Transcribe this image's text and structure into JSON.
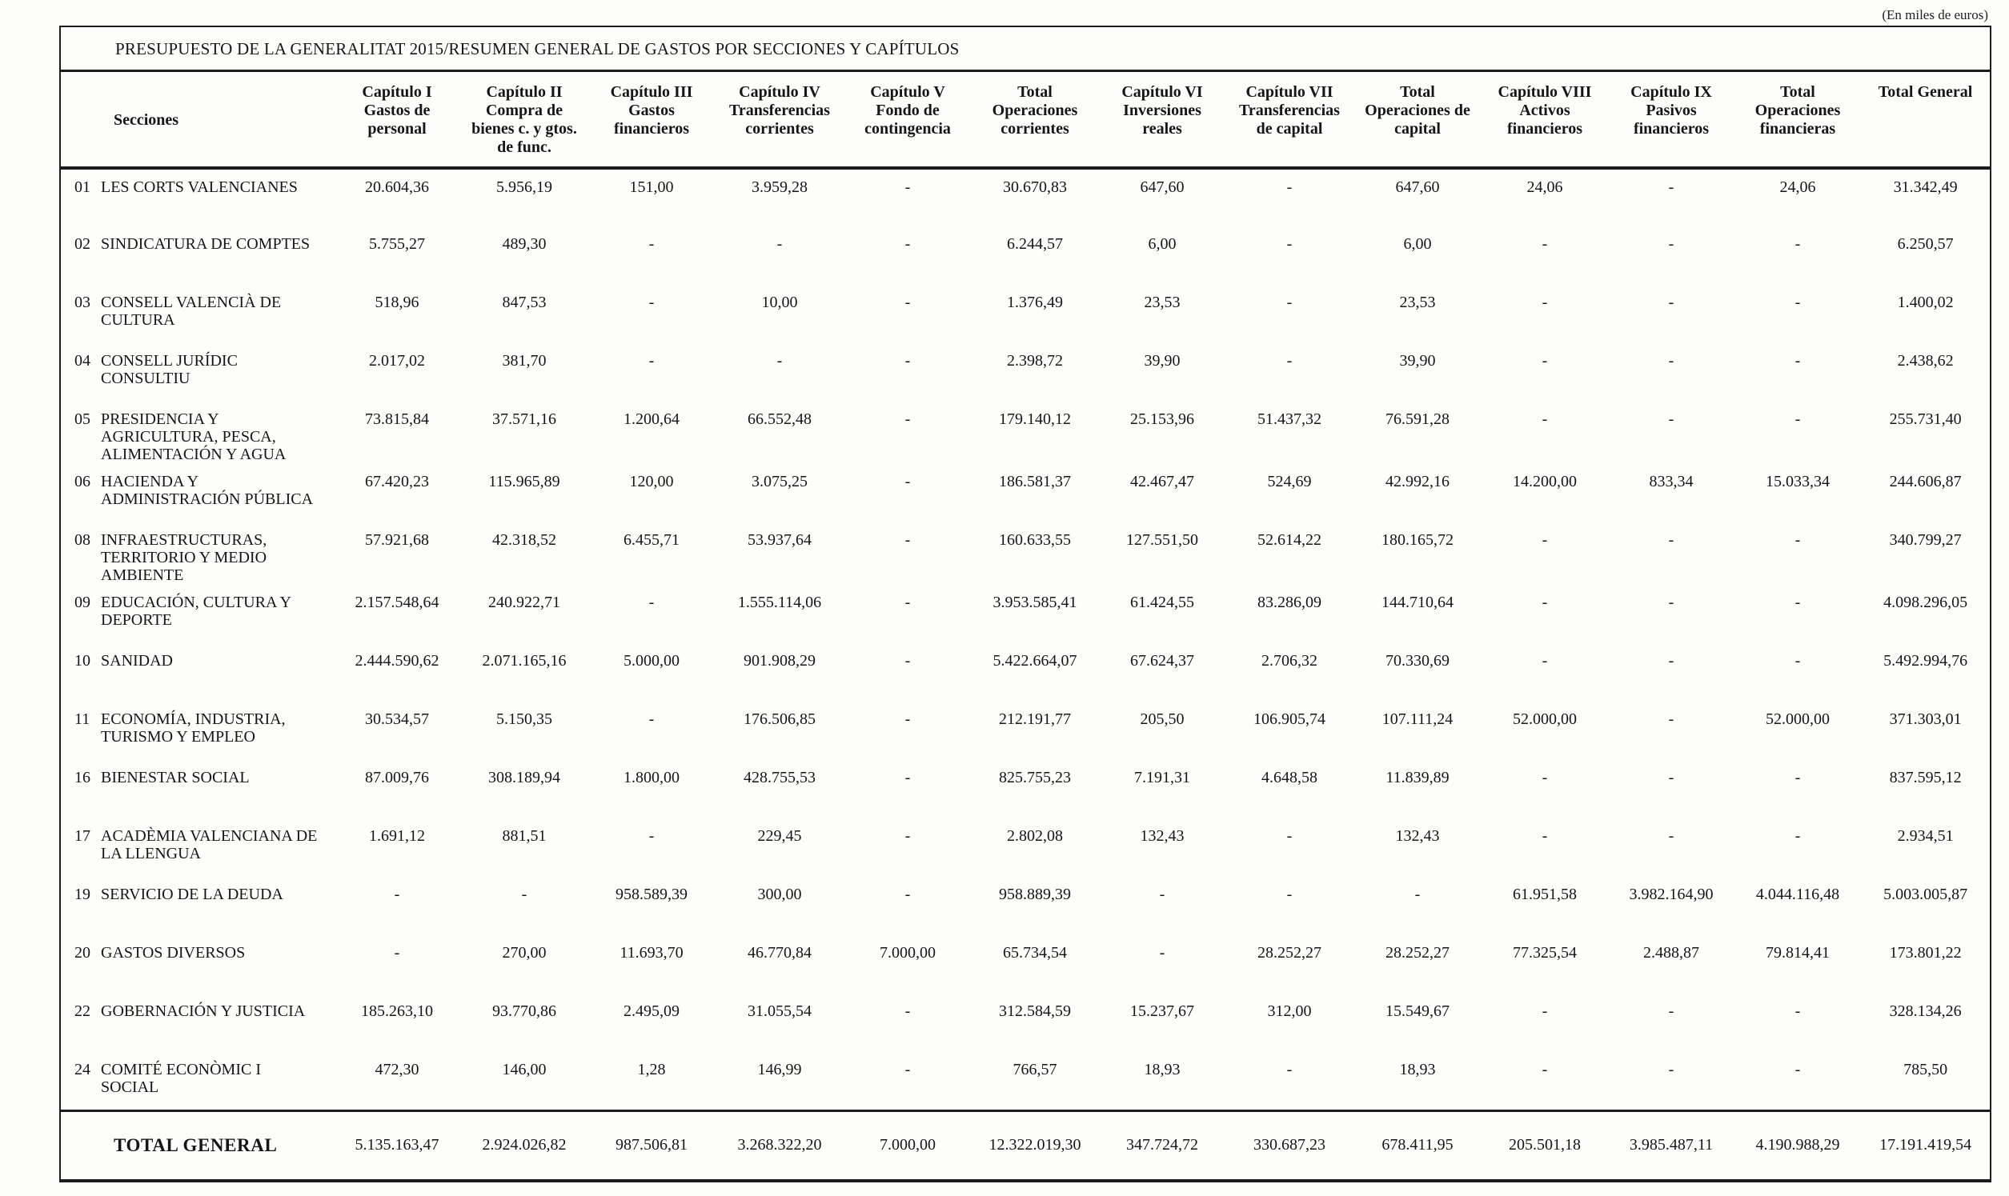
{
  "page": {
    "note": "(En miles de euros)"
  },
  "table": {
    "title": "PRESUPUESTO DE LA GENERALITAT 2015/RESUMEN GENERAL DE GASTOS POR SECCIONES Y CAPÍTULOS",
    "columns": [
      {
        "id": "secciones",
        "label": "Secciones"
      },
      {
        "id": "cap1",
        "label": "Capítulo I\nGastos de\npersonal"
      },
      {
        "id": "cap2",
        "label": "Capítulo II\nCompra de\nbienes c. y gtos.\nde func."
      },
      {
        "id": "cap3",
        "label": "Capítulo III\nGastos\nfinancieros"
      },
      {
        "id": "cap4",
        "label": "Capítulo IV\nTransferencias\ncorrientes"
      },
      {
        "id": "cap5",
        "label": "Capítulo V\nFondo de\ncontingencia"
      },
      {
        "id": "total_corrientes",
        "label": "Total\nOperaciones\ncorrientes"
      },
      {
        "id": "cap6",
        "label": "Capítulo VI\nInversiones\nreales"
      },
      {
        "id": "cap7",
        "label": "Capítulo VII\nTransferencias\nde capital"
      },
      {
        "id": "total_capital",
        "label": "Total\nOperaciones de\ncapital"
      },
      {
        "id": "cap8",
        "label": "Capítulo VIII\nActivos\nfinancieros"
      },
      {
        "id": "cap9",
        "label": "Capítulo IX\nPasivos\nfinancieros"
      },
      {
        "id": "total_financieras",
        "label": "Total\nOperaciones\nfinancieras"
      },
      {
        "id": "total_general",
        "label": "Total General"
      }
    ],
    "rows": [
      {
        "code": "01",
        "name": "LES CORTS VALENCIANES",
        "values": [
          "20.604,36",
          "5.956,19",
          "151,00",
          "3.959,28",
          "-",
          "30.670,83",
          "647,60",
          "-",
          "647,60",
          "24,06",
          "-",
          "24,06",
          "31.342,49"
        ]
      },
      {
        "code": "02",
        "name": "SINDICATURA DE COMPTES",
        "values": [
          "5.755,27",
          "489,30",
          "-",
          "-",
          "-",
          "6.244,57",
          "6,00",
          "-",
          "6,00",
          "-",
          "-",
          "-",
          "6.250,57"
        ]
      },
      {
        "code": "03",
        "name": "CONSELL VALENCIÀ DE\nCULTURA",
        "values": [
          "518,96",
          "847,53",
          "-",
          "10,00",
          "-",
          "1.376,49",
          "23,53",
          "-",
          "23,53",
          "-",
          "-",
          "-",
          "1.400,02"
        ]
      },
      {
        "code": "04",
        "name": "CONSELL JURÍDIC\nCONSULTIU",
        "values": [
          "2.017,02",
          "381,70",
          "-",
          "-",
          "-",
          "2.398,72",
          "39,90",
          "-",
          "39,90",
          "-",
          "-",
          "-",
          "2.438,62"
        ]
      },
      {
        "code": "05",
        "name": "PRESIDENCIA Y\nAGRICULTURA, PESCA,\nALIMENTACIÓN Y AGUA",
        "values": [
          "73.815,84",
          "37.571,16",
          "1.200,64",
          "66.552,48",
          "-",
          "179.140,12",
          "25.153,96",
          "51.437,32",
          "76.591,28",
          "-",
          "-",
          "-",
          "255.731,40"
        ]
      },
      {
        "code": "06",
        "name": "HACIENDA Y\nADMINISTRACIÓN PÚBLICA",
        "values": [
          "67.420,23",
          "115.965,89",
          "120,00",
          "3.075,25",
          "-",
          "186.581,37",
          "42.467,47",
          "524,69",
          "42.992,16",
          "14.200,00",
          "833,34",
          "15.033,34",
          "244.606,87"
        ]
      },
      {
        "code": "08",
        "name": "INFRAESTRUCTURAS,\nTERRITORIO Y MEDIO\nAMBIENTE",
        "values": [
          "57.921,68",
          "42.318,52",
          "6.455,71",
          "53.937,64",
          "-",
          "160.633,55",
          "127.551,50",
          "52.614,22",
          "180.165,72",
          "-",
          "-",
          "-",
          "340.799,27"
        ]
      },
      {
        "code": "09",
        "name": "EDUCACIÓN, CULTURA Y\nDEPORTE",
        "values": [
          "2.157.548,64",
          "240.922,71",
          "-",
          "1.555.114,06",
          "-",
          "3.953.585,41",
          "61.424,55",
          "83.286,09",
          "144.710,64",
          "-",
          "-",
          "-",
          "4.098.296,05"
        ]
      },
      {
        "code": "10",
        "name": "SANIDAD",
        "values": [
          "2.444.590,62",
          "2.071.165,16",
          "5.000,00",
          "901.908,29",
          "-",
          "5.422.664,07",
          "67.624,37",
          "2.706,32",
          "70.330,69",
          "-",
          "-",
          "-",
          "5.492.994,76"
        ]
      },
      {
        "code": "11",
        "name": "ECONOMÍA, INDUSTRIA,\nTURISMO Y EMPLEO",
        "values": [
          "30.534,57",
          "5.150,35",
          "-",
          "176.506,85",
          "-",
          "212.191,77",
          "205,50",
          "106.905,74",
          "107.111,24",
          "52.000,00",
          "-",
          "52.000,00",
          "371.303,01"
        ]
      },
      {
        "code": "16",
        "name": "BIENESTAR SOCIAL",
        "values": [
          "87.009,76",
          "308.189,94",
          "1.800,00",
          "428.755,53",
          "-",
          "825.755,23",
          "7.191,31",
          "4.648,58",
          "11.839,89",
          "-",
          "-",
          "-",
          "837.595,12"
        ]
      },
      {
        "code": "17",
        "name": "ACADÈMIA VALENCIANA DE\nLA LLENGUA",
        "values": [
          "1.691,12",
          "881,51",
          "-",
          "229,45",
          "-",
          "2.802,08",
          "132,43",
          "-",
          "132,43",
          "-",
          "-",
          "-",
          "2.934,51"
        ]
      },
      {
        "code": "19",
        "name": "SERVICIO DE LA DEUDA",
        "values": [
          "-",
          "-",
          "958.589,39",
          "300,00",
          "-",
          "958.889,39",
          "-",
          "-",
          "-",
          "61.951,58",
          "3.982.164,90",
          "4.044.116,48",
          "5.003.005,87"
        ]
      },
      {
        "code": "20",
        "name": "GASTOS DIVERSOS",
        "values": [
          "-",
          "270,00",
          "11.693,70",
          "46.770,84",
          "7.000,00",
          "65.734,54",
          "-",
          "28.252,27",
          "28.252,27",
          "77.325,54",
          "2.488,87",
          "79.814,41",
          "173.801,22"
        ]
      },
      {
        "code": "22",
        "name": "GOBERNACIÓN Y JUSTICIA",
        "values": [
          "185.263,10",
          "93.770,86",
          "2.495,09",
          "31.055,54",
          "-",
          "312.584,59",
          "15.237,67",
          "312,00",
          "15.549,67",
          "-",
          "-",
          "-",
          "328.134,26"
        ]
      },
      {
        "code": "24",
        "name": "COMITÉ ECONÒMIC I\nSOCIAL",
        "values": [
          "472,30",
          "146,00",
          "1,28",
          "146,99",
          "-",
          "766,57",
          "18,93",
          "-",
          "18,93",
          "-",
          "-",
          "-",
          "785,50"
        ]
      }
    ],
    "total": {
      "label": "TOTAL GENERAL",
      "values": [
        "5.135.163,47",
        "2.924.026,82",
        "987.506,81",
        "3.268.322,20",
        "7.000,00",
        "12.322.019,30",
        "347.724,72",
        "330.687,23",
        "678.411,95",
        "205.501,18",
        "3.985.487,11",
        "4.190.988,29",
        "17.191.419,54"
      ]
    }
  }
}
